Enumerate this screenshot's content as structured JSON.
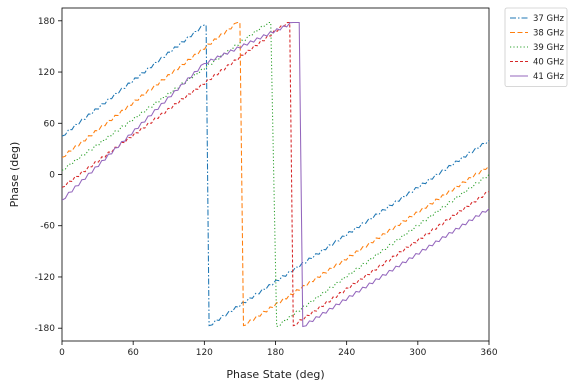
{
  "chart_data": {
    "type": "line",
    "title": "",
    "xlabel": "Phase State (deg)",
    "ylabel": "Phase (deg)",
    "xlim": [
      0,
      360
    ],
    "ylim": [
      -195,
      195
    ],
    "x_ticks": [
      0,
      60,
      120,
      180,
      240,
      300,
      360
    ],
    "y_ticks": [
      -180,
      -120,
      -60,
      0,
      60,
      120,
      180
    ],
    "grid": false,
    "legend_position": "outside-top-right",
    "series": [
      {
        "name": "37 GHz",
        "color": "#1f77b4",
        "dash": "dashdot",
        "points": [
          [
            0,
            45
          ],
          [
            120,
            175
          ],
          [
            121.5,
            175
          ],
          [
            124,
            -177
          ],
          [
            360,
            40
          ]
        ]
      },
      {
        "name": "38 GHz",
        "color": "#ff7f0e",
        "dash": "dash",
        "points": [
          [
            0,
            20
          ],
          [
            148,
            178
          ],
          [
            150,
            178
          ],
          [
            153,
            -177
          ],
          [
            360,
            10
          ]
        ]
      },
      {
        "name": "39 GHz",
        "color": "#2ca02c",
        "dash": "dotted",
        "points": [
          [
            0,
            5
          ],
          [
            174,
            178
          ],
          [
            176,
            178
          ],
          [
            181,
            -178
          ],
          [
            360,
            0
          ]
        ]
      },
      {
        "name": "40 GHz",
        "color": "#d62728",
        "dash": "dashed-dense",
        "points": [
          [
            0,
            -15
          ],
          [
            190,
            178
          ],
          [
            192,
            178
          ],
          [
            195,
            -177
          ],
          [
            360,
            -20
          ]
        ]
      },
      {
        "name": "41 GHz",
        "color": "#9467bd",
        "dash": "solid",
        "points": [
          [
            0,
            -30
          ],
          [
            120,
            130
          ],
          [
            195,
            178
          ],
          [
            200,
            178
          ],
          [
            203,
            -178
          ],
          [
            360,
            -40
          ]
        ]
      }
    ]
  }
}
